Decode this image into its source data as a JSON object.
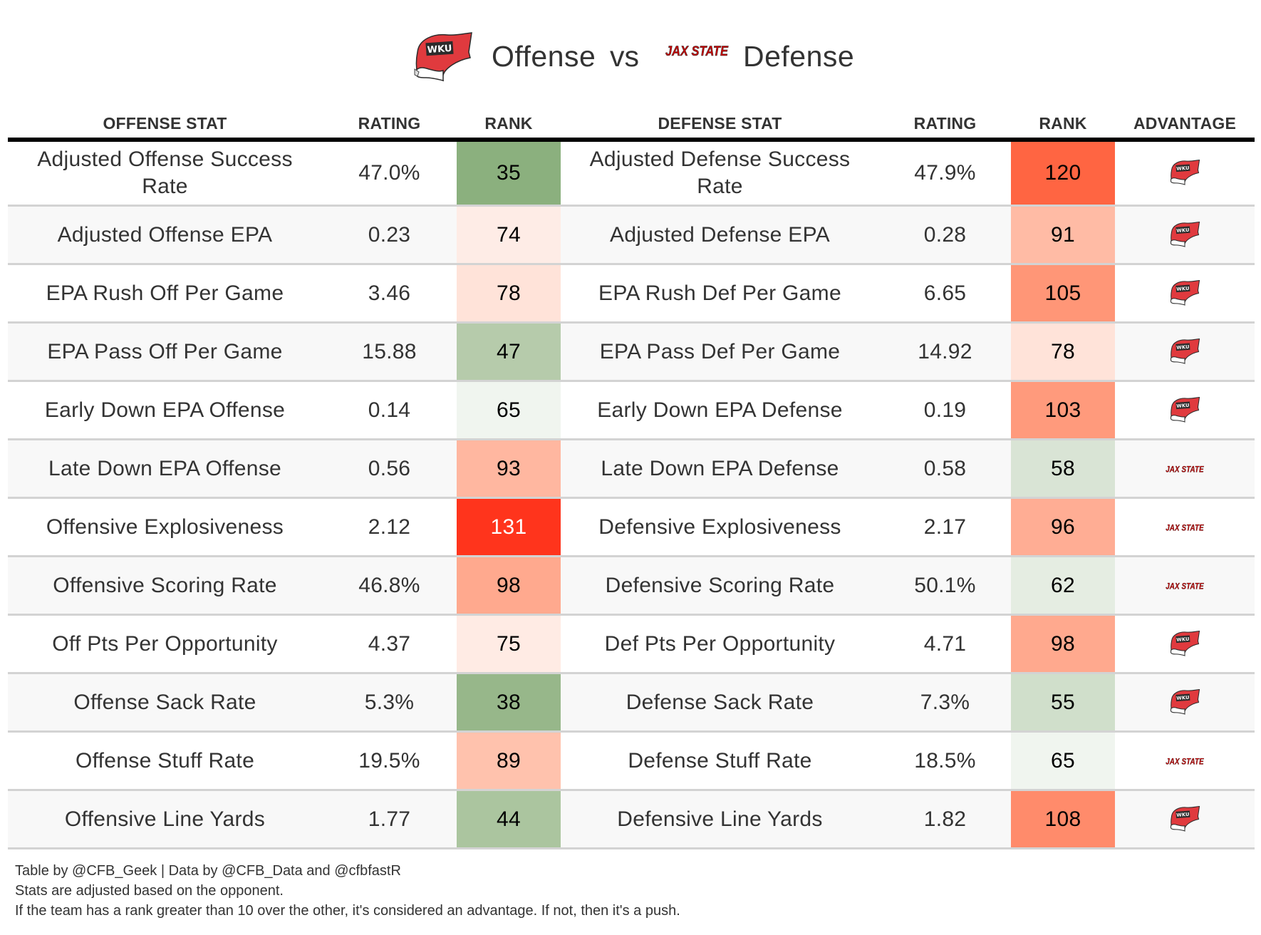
{
  "title": {
    "offense_team_logo": "wku-logo",
    "offense_label": "Offense",
    "vs_label": "vs",
    "defense_team_logo": "jax-state-logo",
    "defense_label": "Defense"
  },
  "colors": {
    "header_rule": "#000000",
    "row_divider": "#d3d3d3",
    "zebra": "#f8f8f8",
    "wku_red": "#e03a3e",
    "jax_red": "#cc0000"
  },
  "table": {
    "columns": [
      "OFFENSE STAT",
      "RATING",
      "RANK",
      "DEFENSE STAT",
      "RATING",
      "RANK",
      "ADVANTAGE"
    ],
    "rows": [
      {
        "off_stat": "Adjusted Offense Success Rate",
        "off_rating": "47.0%",
        "off_rank": "35",
        "off_rank_color": "#8bb07e",
        "def_stat": "Adjusted Defense Success Rate",
        "def_rating": "47.9%",
        "def_rank": "120",
        "def_rank_color": "#ff6542",
        "advantage": "WKU"
      },
      {
        "off_stat": "Adjusted Offense EPA",
        "off_rating": "0.23",
        "off_rank": "74",
        "off_rank_color": "#feece6",
        "def_stat": "Adjusted Defense EPA",
        "def_rating": "0.28",
        "def_rank": "91",
        "def_rank_color": "#ffbba5",
        "advantage": "WKU"
      },
      {
        "off_stat": "EPA Rush Off Per Game",
        "off_rating": "3.46",
        "off_rank": "78",
        "off_rank_color": "#ffe3d9",
        "def_stat": "EPA Rush Def Per Game",
        "def_rating": "6.65",
        "def_rank": "105",
        "def_rank_color": "#ff9677",
        "advantage": "WKU"
      },
      {
        "off_stat": "EPA Pass Off Per Game",
        "off_rating": "15.88",
        "off_rank": "47",
        "off_rank_color": "#b6cbab",
        "def_stat": "EPA Pass Def Per Game",
        "def_rating": "14.92",
        "def_rank": "78",
        "def_rank_color": "#ffe3d9",
        "advantage": "WKU"
      },
      {
        "off_stat": "Early Down EPA Offense",
        "off_rating": "0.14",
        "off_rank": "65",
        "off_rank_color": "#f0f5ef",
        "def_stat": "Early Down EPA Defense",
        "def_rating": "0.19",
        "def_rank": "103",
        "def_rank_color": "#ff9a7c",
        "advantage": "WKU"
      },
      {
        "off_stat": "Late Down EPA Offense",
        "off_rating": "0.56",
        "off_rank": "93",
        "off_rank_color": "#ffb7a0",
        "def_stat": "Late Down EPA Defense",
        "def_rating": "0.58",
        "def_rank": "58",
        "def_rank_color": "#d9e4d5",
        "advantage": "JAX STATE"
      },
      {
        "off_stat": "Offensive Explosiveness",
        "off_rating": "2.12",
        "off_rank": "131",
        "off_rank_color": "#ff341c",
        "def_stat": "Defensive Explosiveness",
        "def_rating": "2.17",
        "def_rank": "96",
        "def_rank_color": "#ffad94",
        "advantage": "JAX STATE"
      },
      {
        "off_stat": "Offensive Scoring Rate",
        "off_rating": "46.8%",
        "off_rank": "98",
        "off_rank_color": "#ffa98e",
        "def_stat": "Defensive Scoring Rate",
        "def_rating": "50.1%",
        "def_rank": "62",
        "def_rank_color": "#e5ede2",
        "advantage": "JAX STATE"
      },
      {
        "off_stat": "Off Pts Per Opportunity",
        "off_rating": "4.37",
        "off_rank": "75",
        "off_rank_color": "#ffebe4",
        "def_stat": "Def Pts Per Opportunity",
        "def_rating": "4.71",
        "def_rank": "98",
        "def_rank_color": "#ffa98e",
        "advantage": "WKU"
      },
      {
        "off_stat": "Offense Sack Rate",
        "off_rating": "5.3%",
        "off_rank": "38",
        "off_rank_color": "#97b78a",
        "def_stat": "Defense Sack Rate",
        "def_rating": "7.3%",
        "def_rank": "55",
        "def_rank_color": "#d0dfcb",
        "advantage": "WKU"
      },
      {
        "off_stat": "Offense Stuff Rate",
        "off_rating": "19.5%",
        "off_rank": "89",
        "off_rank_color": "#ffc2ad",
        "def_stat": "Defense Stuff Rate",
        "def_rating": "18.5%",
        "def_rank": "65",
        "def_rank_color": "#f0f5ef",
        "advantage": "JAX STATE"
      },
      {
        "off_stat": "Offensive Line Yards",
        "off_rating": "1.77",
        "off_rank": "44",
        "off_rank_color": "#abc59f",
        "def_stat": "Defensive Line Yards",
        "def_rating": "1.82",
        "def_rank": "108",
        "def_rank_color": "#ff8b6b",
        "advantage": "WKU"
      }
    ]
  },
  "footer": {
    "line1": "Table by @CFB_Geek | Data by @CFB_Data and @cfbfastR",
    "line2": "Stats are adjusted based on the opponent.",
    "line3": "If the team has a rank greater than 10 over the other, it's considered an advantage. If not, then it's a push."
  }
}
